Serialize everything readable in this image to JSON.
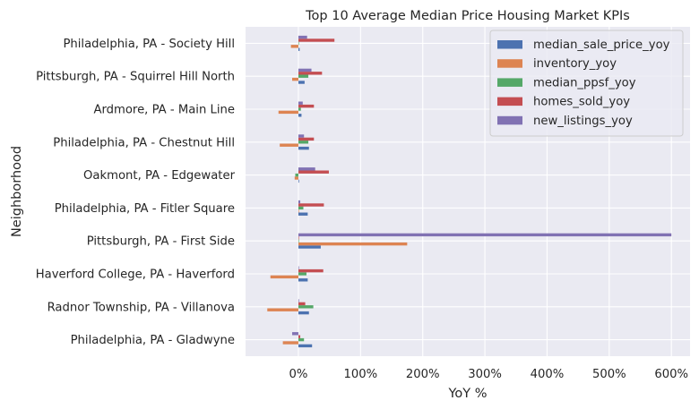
{
  "chart_data": {
    "type": "bar",
    "orientation": "horizontal",
    "title": "Top 10 Average Median Price Housing Market KPIs",
    "xlabel": "YoY %",
    "ylabel": "Neighborhood",
    "xlim": [
      -0.85,
      6.3
    ],
    "xticks": [
      0,
      1,
      2,
      3,
      4,
      5,
      6
    ],
    "xtick_labels": [
      "0%",
      "100%",
      "200%",
      "300%",
      "400%",
      "500%",
      "600%"
    ],
    "grid": true,
    "legend_position": "top-right",
    "categories": [
      "Philadelphia, PA - Gladwyne",
      "Radnor Township, PA - Villanova",
      "Haverford College, PA - Haverford",
      "Pittsburgh, PA - First Side",
      "Philadelphia, PA - Fitler Square",
      "Oakmont, PA - Edgewater",
      "Philadelphia, PA - Chestnut Hill",
      "Ardmore, PA - Main Line",
      "Pittsburgh, PA - Squirrel Hill North",
      "Philadelphia, PA - Society Hill"
    ],
    "series": [
      {
        "name": "median_sale_price_yoy",
        "color": "#4c72b0",
        "values": [
          0.22,
          0.17,
          0.15,
          0.36,
          0.15,
          0.01,
          0.17,
          0.05,
          0.1,
          0.02
        ]
      },
      {
        "name": "inventory_yoy",
        "color": "#dd8452",
        "values": [
          -0.25,
          -0.5,
          -0.45,
          1.75,
          0.0,
          -0.06,
          -0.3,
          -0.32,
          -0.1,
          -0.12
        ]
      },
      {
        "name": "median_ppsf_yoy",
        "color": "#55a868",
        "values": [
          0.09,
          0.24,
          0.13,
          0.0,
          0.08,
          -0.05,
          0.16,
          0.04,
          0.16,
          0.0
        ]
      },
      {
        "name": "homes_sold_yoy",
        "color": "#c44e52",
        "values": [
          0.03,
          0.11,
          0.4,
          0.0,
          0.41,
          0.49,
          0.25,
          0.25,
          0.38,
          0.58
        ]
      },
      {
        "name": "new_listings_yoy",
        "color": "#8172b3",
        "values": [
          -0.1,
          0.01,
          0.0,
          6.0,
          0.03,
          0.27,
          0.09,
          0.07,
          0.21,
          0.14
        ]
      }
    ]
  }
}
